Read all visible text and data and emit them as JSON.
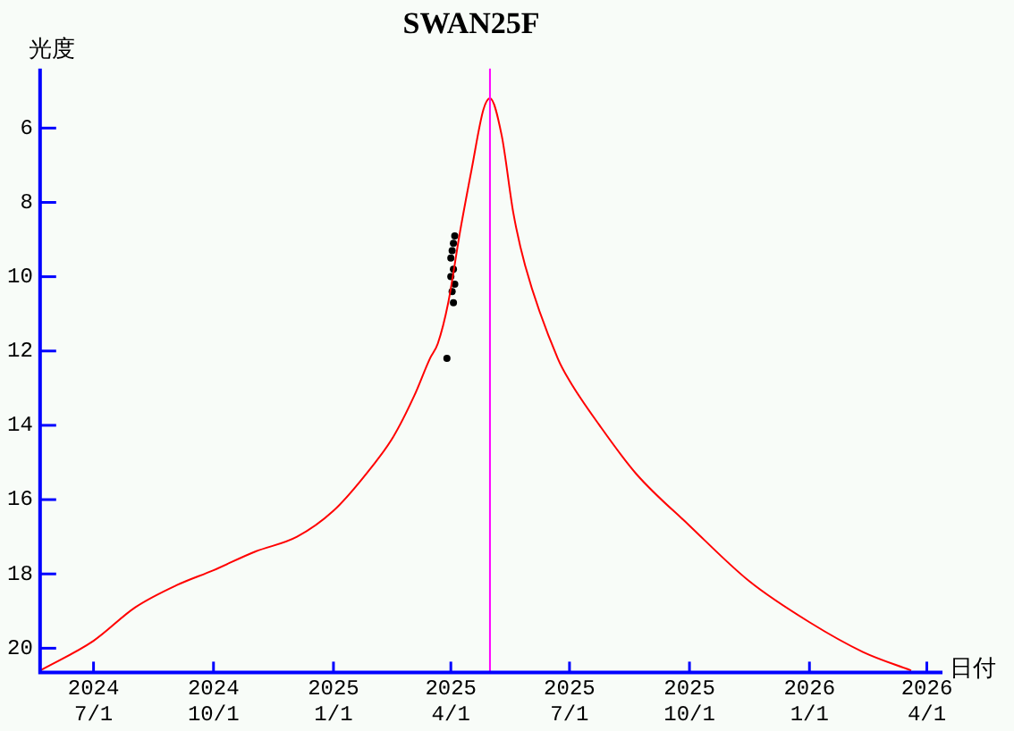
{
  "chart_data": {
    "type": "line",
    "title": "SWAN25F",
    "xlabel": "日付",
    "ylabel": "光度",
    "xlim": [
      "2024-05-21",
      "2026-04-13"
    ],
    "xticks": [
      {
        "value": "2024-07-01",
        "label": "2024\n7/1"
      },
      {
        "value": "2024-10-01",
        "label": "2024\n10/1"
      },
      {
        "value": "2025-01-01",
        "label": "2025\n1/1"
      },
      {
        "value": "2025-04-01",
        "label": "2025\n4/1"
      },
      {
        "value": "2025-07-01",
        "label": "2025\n7/1"
      },
      {
        "value": "2025-10-01",
        "label": "2025\n10/1"
      },
      {
        "value": "2026-01-01",
        "label": "2026\n1/1"
      },
      {
        "value": "2026-04-01",
        "label": "2026\n4/1"
      }
    ],
    "ylim": [
      20.65,
      4.4
    ],
    "yticks": [
      6,
      8,
      10,
      12,
      14,
      16,
      18,
      20
    ],
    "series": [
      {
        "type": "line",
        "color": "#ff0000",
        "marker": "none",
        "x": [
          "2024-05-21",
          "2024-07-01",
          "2024-08-02",
          "2024-09-03",
          "2024-10-01",
          "2024-11-02",
          "2024-12-04",
          "2025-01-01",
          "2025-01-24",
          "2025-02-16",
          "2025-03-04",
          "2025-03-16",
          "2025-03-22",
          "2025-03-30",
          "2025-04-08",
          "2025-04-17",
          "2025-04-26",
          "2025-05-01",
          "2025-05-10",
          "2025-05-19",
          "2025-05-28",
          "2025-06-22",
          "2025-07-01",
          "2025-07-24",
          "2025-08-21",
          "2025-10-01",
          "2025-11-16",
          "2026-01-01",
          "2026-02-11",
          "2026-03-20"
        ],
        "values": [
          20.6,
          19.8,
          18.9,
          18.3,
          17.9,
          17.4,
          17.0,
          16.3,
          15.4,
          14.3,
          13.2,
          12.2,
          11.8,
          10.7,
          8.8,
          7.1,
          5.5,
          5.2,
          6.2,
          8.3,
          9.7,
          12.2,
          12.8,
          14.0,
          15.3,
          16.7,
          18.2,
          19.3,
          20.1,
          20.6
        ]
      },
      {
        "type": "scatter",
        "color": "#000000",
        "marker": "circle",
        "x": [
          "2025-04-04",
          "2025-04-03",
          "2025-04-02",
          "2025-04-01",
          "2025-04-03",
          "2025-04-01",
          "2025-04-04",
          "2025-04-02",
          "2025-04-03",
          "2025-03-29"
        ],
        "values": [
          8.9,
          9.1,
          9.3,
          9.5,
          9.8,
          10.0,
          10.2,
          10.4,
          10.7,
          12.2
        ]
      }
    ],
    "ref_lines": [
      {
        "axis": "x",
        "value": "2025-05-01",
        "color": "#ff00ff"
      }
    ]
  }
}
